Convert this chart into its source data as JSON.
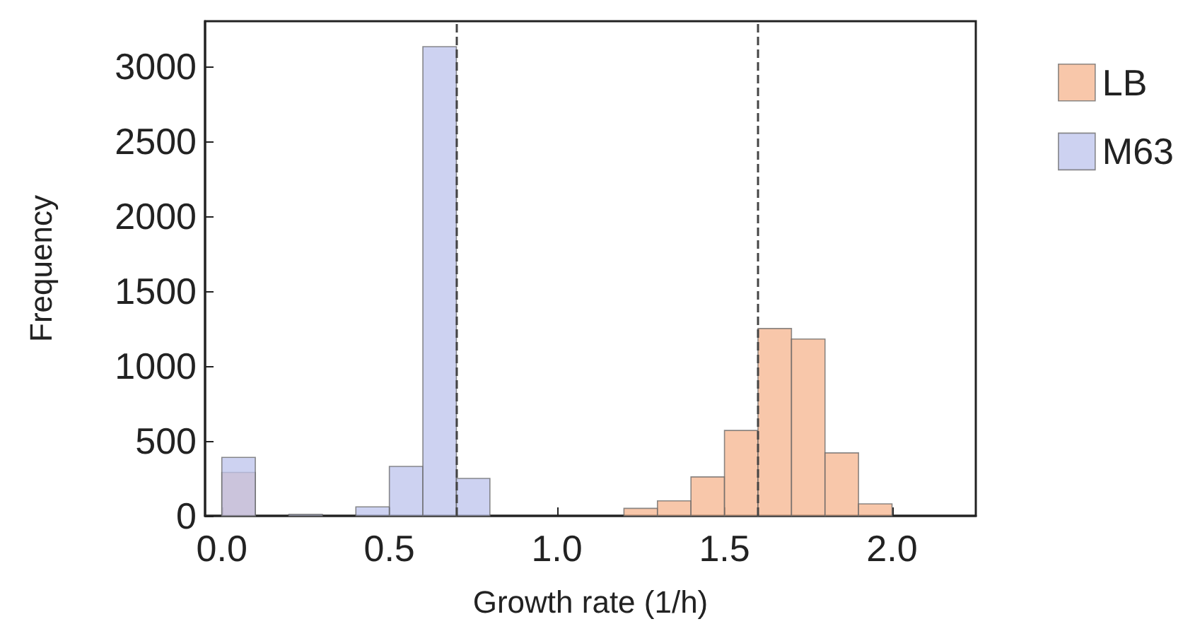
{
  "chart_data": {
    "type": "histogram",
    "xlabel": "Growth rate (1/h)",
    "ylabel": "Frequency",
    "bins": [
      0,
      0.1,
      0.2,
      0.3,
      0.4,
      0.5,
      0.6,
      0.7,
      0.8,
      0.9,
      1.0,
      1.1,
      1.2,
      1.3,
      1.4,
      1.5,
      1.6,
      1.7,
      1.8,
      1.9,
      2.0,
      2.1
    ],
    "series": [
      {
        "name": "LB",
        "color": "#f5b48e",
        "values": [
          290,
          null,
          null,
          null,
          null,
          null,
          null,
          null,
          null,
          null,
          null,
          null,
          50,
          100,
          260,
          570,
          1250,
          1180,
          420,
          80,
          null
        ]
      },
      {
        "name": "M63",
        "color": "#bcc3ec",
        "values": [
          390,
          null,
          10,
          null,
          60,
          330,
          3130,
          250,
          null,
          null,
          null,
          null,
          null,
          null,
          null,
          null,
          null,
          null,
          null,
          null,
          null
        ]
      }
    ],
    "xlim": [
      -0.05,
      2.25
    ],
    "xticks": [
      {
        "value": 0,
        "label": "0.0"
      },
      0.5,
      {
        "value": 1,
        "label": "1.0"
      },
      1.5,
      {
        "value": 2,
        "label": "2.0"
      }
    ],
    "ylim": [
      0,
      3300
    ],
    "yticks": [
      0,
      500,
      1000,
      1500,
      2000,
      2500,
      3000
    ],
    "ref_lines": [
      {
        "axis": "x",
        "value": 0.7,
        "line_style": "dashed",
        "color": "#444444"
      },
      {
        "axis": "x",
        "value": 1.6,
        "line_style": "dashed",
        "color": "#444444"
      }
    ],
    "legend": "right",
    "grid": false
  }
}
